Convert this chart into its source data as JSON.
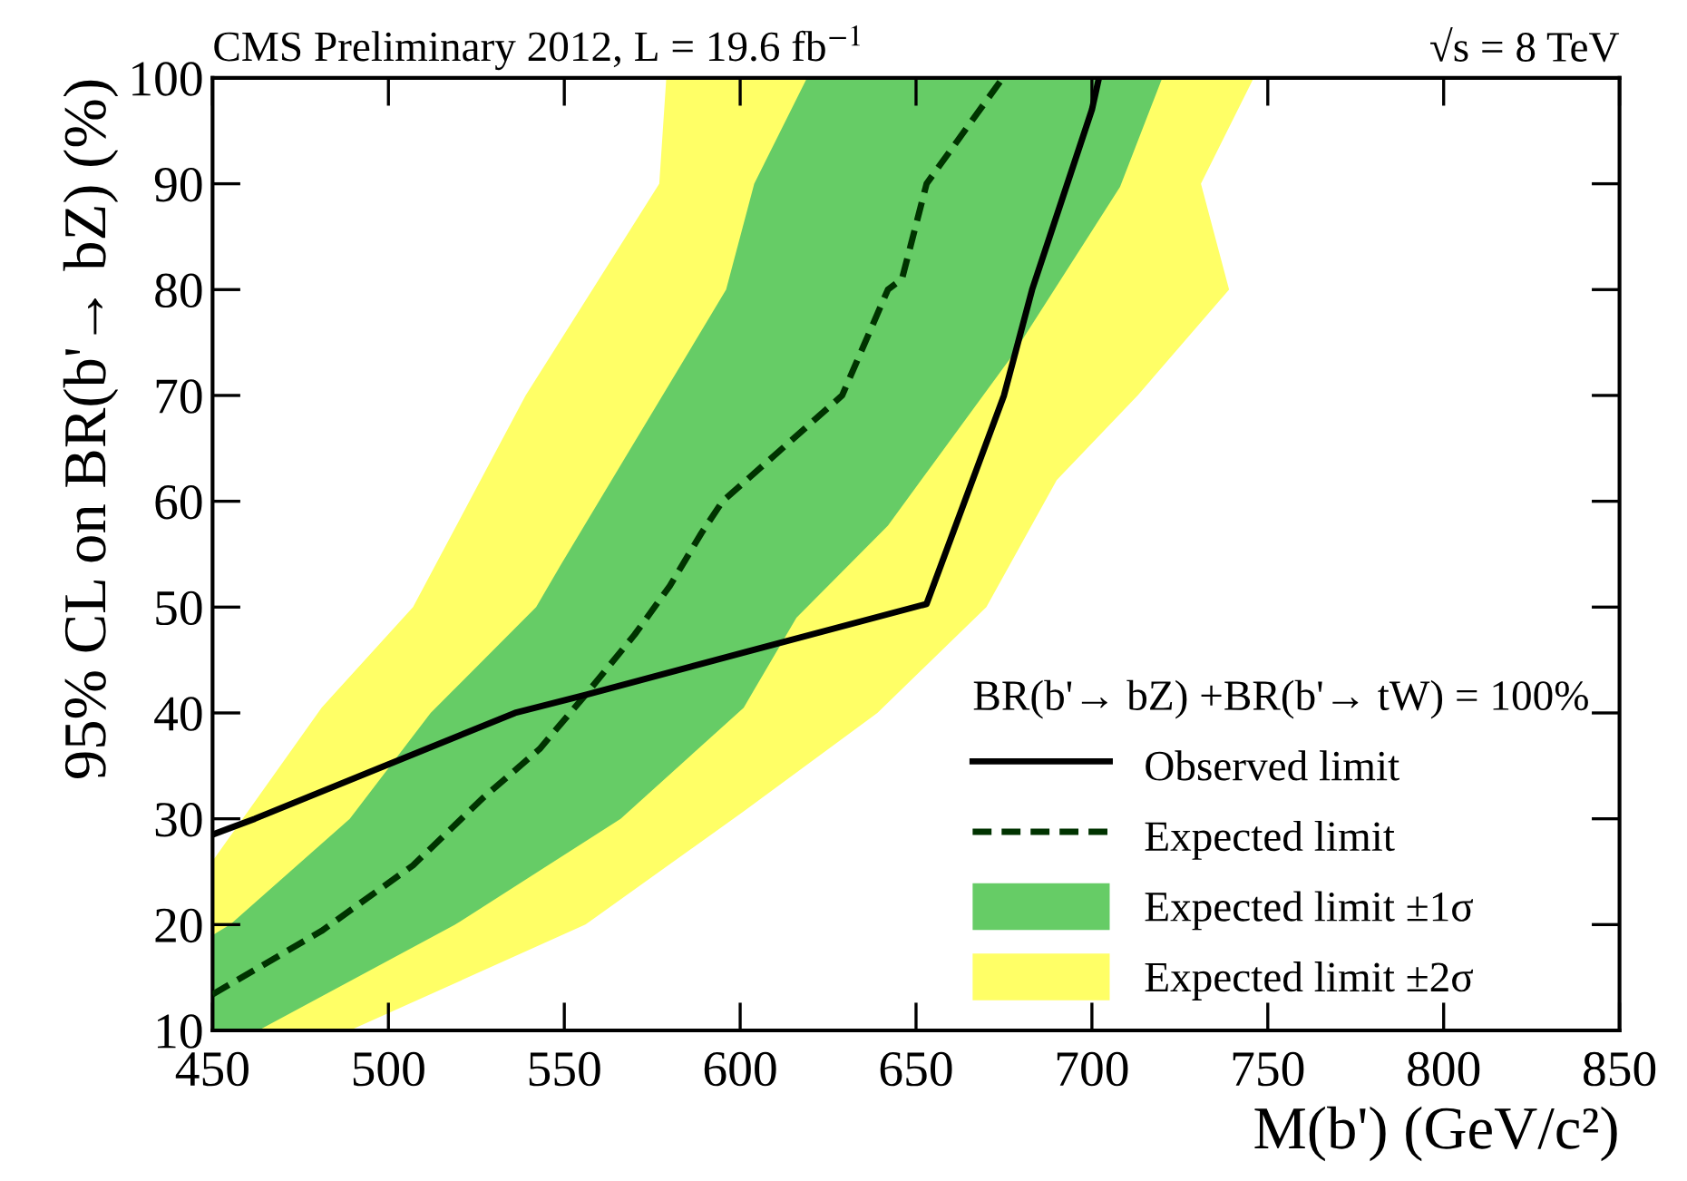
{
  "chart_data": {
    "type": "line",
    "title": "CMS Preliminary 2012, L = 19.6 fb$^{−1}$",
    "subtitle": "√s = 8 TeV",
    "xlabel": "M(b') (GeV/c²)",
    "ylabel": "95% CL on BR(b'→ bZ) (%)",
    "legend_title": "BR(b'→ bZ) +BR(b'→ tW) = 100%",
    "legend": "bottom right",
    "xlim": [
      450,
      850
    ],
    "xticks": [
      450,
      500,
      550,
      600,
      650,
      700,
      750,
      800,
      850
    ],
    "ylim": [
      10,
      100
    ],
    "yticks": [
      10,
      20,
      30,
      40,
      50,
      60,
      70,
      80,
      90,
      100
    ],
    "grid": false,
    "series": [
      {
        "name": "Expected limit ±2σ",
        "type": "area",
        "color": "#ffff66",
        "x": [
          579,
          577,
          539,
          507,
          481,
          450,
          450,
          489,
          556,
          601,
          639,
          670,
          690,
          713,
          739,
          731,
          746
        ],
        "values": [
          100,
          90,
          70,
          50,
          40.5,
          26,
          10,
          10,
          20,
          30.7,
          40,
          50,
          62,
          70,
          80,
          90,
          100
        ]
      },
      {
        "name": "Expected limit ±1σ",
        "type": "area",
        "color": "#66cc66",
        "x": [
          619,
          604,
          596,
          549,
          542,
          512,
          489,
          455,
          450,
          450,
          463,
          519,
          566,
          601,
          616,
          642,
          677,
          708,
          720
        ],
        "values": [
          100,
          90,
          80,
          54,
          50,
          40,
          30,
          20,
          19,
          10,
          10,
          20,
          30,
          40.5,
          49,
          57.7,
          73.6,
          89.7,
          100
        ]
      },
      {
        "name": "Expected limit",
        "type": "line",
        "color": "#003300",
        "line_style": "dashed",
        "x": [
          450,
          481,
          507,
          527,
          543,
          556,
          570,
          580,
          589,
          595,
          629,
          642,
          646,
          653,
          656,
          674
        ],
        "values": [
          13.4,
          19.4,
          25.6,
          32,
          36.6,
          41.7,
          47.4,
          52,
          57,
          60,
          70,
          80,
          81,
          90,
          91.4,
          99.7
        ]
      },
      {
        "name": "Observed limit",
        "type": "line",
        "color": "#000000",
        "line_style": "solid",
        "x": [
          450,
          462,
          499,
          536,
          556,
          601,
          653,
          675,
          683,
          700,
          702
        ],
        "values": [
          28.5,
          30,
          35,
          40,
          41.7,
          45.7,
          50.3,
          70,
          80,
          97,
          100
        ]
      }
    ]
  }
}
